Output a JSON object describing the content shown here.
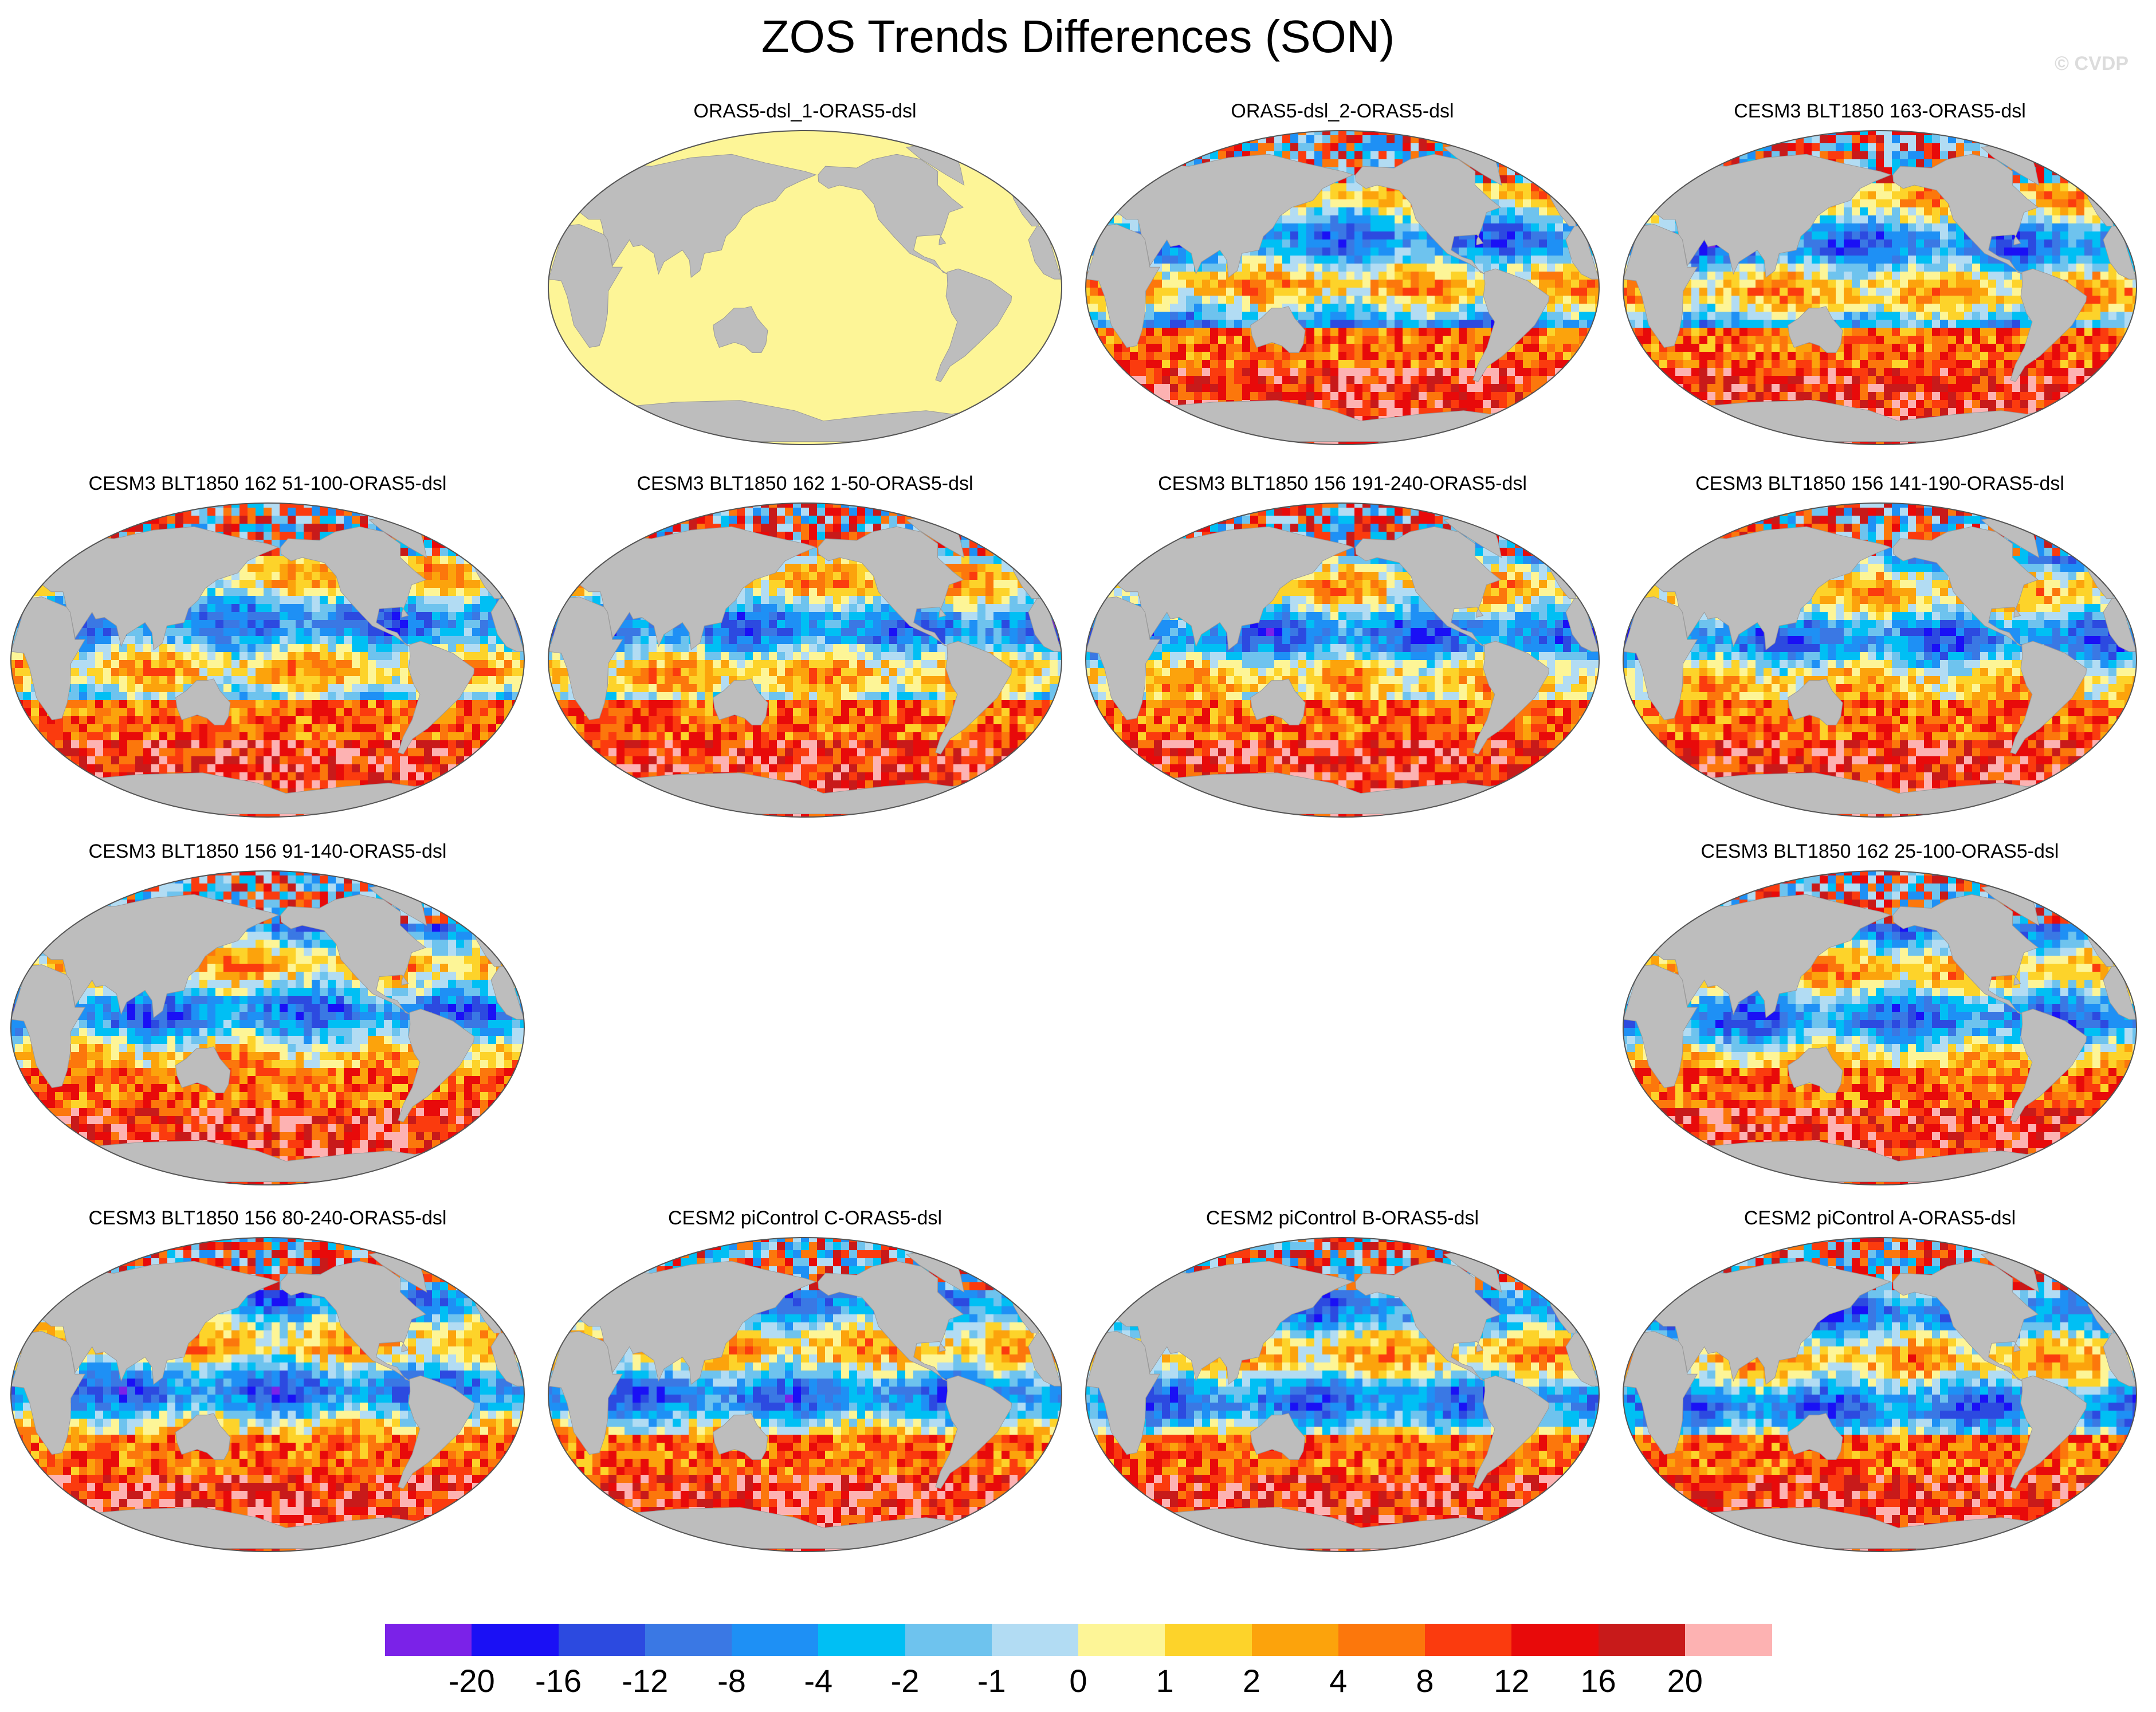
{
  "title": "ZOS Trends Differences (SON)",
  "credit": "© CVDP",
  "palette": {
    "missing": "#ffffff",
    "land": "#bdbdbd",
    "zero_fill": "#fdf597"
  },
  "panels": [
    {
      "label": "ORAS5-dsl_1-ORAS5-dsl",
      "pattern": "zero"
    },
    {
      "label": "ORAS5-dsl_2-ORAS5-dsl",
      "pattern": "field"
    },
    {
      "label": "CESM3 BLT1850 163-ORAS5-dsl",
      "pattern": "field"
    },
    {
      "label": "CESM3 BLT1850 162 51-100-ORAS5-dsl",
      "pattern": "field"
    },
    {
      "label": "CESM3 BLT1850 162 1-50-ORAS5-dsl",
      "pattern": "field"
    },
    {
      "label": "CESM3 BLT1850 156 191-240-ORAS5-dsl",
      "pattern": "field"
    },
    {
      "label": "CESM3 BLT1850 156 141-190-ORAS5-dsl",
      "pattern": "field"
    },
    {
      "label": "CESM3 BLT1850 156 91-140-ORAS5-dsl",
      "pattern": "field"
    },
    {
      "label": "CESM3 BLT1850 162 25-100-ORAS5-dsl",
      "pattern": "field"
    },
    {
      "label": "CESM3 BLT1850 156 80-240-ORAS5-dsl",
      "pattern": "field"
    },
    {
      "label": "CESM2 piControl C-ORAS5-dsl",
      "pattern": "field"
    },
    {
      "label": "CESM2 piControl B-ORAS5-dsl",
      "pattern": "field"
    },
    {
      "label": "CESM2 piControl A-ORAS5-dsl",
      "pattern": "field"
    }
  ],
  "colorbar": {
    "colors": [
      "#7b22e8",
      "#1a10f5",
      "#2c4ae0",
      "#3a78e4",
      "#1e90f5",
      "#00bff4",
      "#6ec3ee",
      "#b2dcf3",
      "#fdf597",
      "#fdd32a",
      "#fca30c",
      "#fc770c",
      "#fb3b0e",
      "#e80a0a",
      "#c81a1a",
      "#fdb2b2"
    ],
    "labels": [
      "-20",
      "-16",
      "-12",
      "-8",
      "-4",
      "-2",
      "-1",
      "0",
      "1",
      "2",
      "4",
      "8",
      "12",
      "16",
      "20"
    ]
  }
}
